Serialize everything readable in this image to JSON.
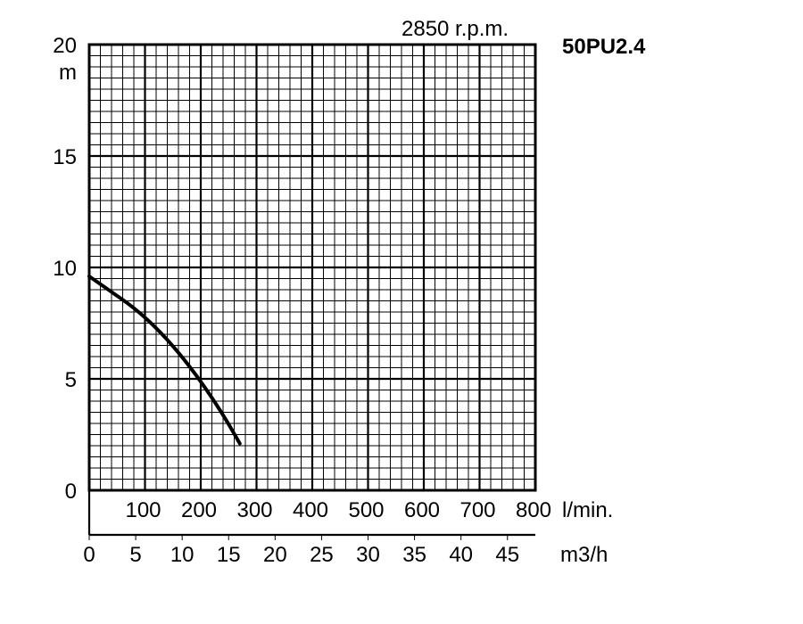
{
  "chart_data": {
    "type": "line",
    "title": "50PU2.4",
    "subtitle": "2850 r.p.m.",
    "ylabel": "m",
    "xlabel_primary": "l/min.",
    "xlabel_secondary": "m3/h",
    "ylim": [
      0,
      20
    ],
    "xlim_lmin": [
      0,
      800
    ],
    "yticks": [
      "0",
      "5",
      "10",
      "15",
      "20"
    ],
    "xticks_lmin": [
      "100",
      "200",
      "300",
      "400",
      "500",
      "600",
      "700",
      "800"
    ],
    "xticks_m3h": [
      "0",
      "5",
      "10",
      "15",
      "20",
      "25",
      "30",
      "35",
      "40",
      "45"
    ],
    "grid": true,
    "series": [
      {
        "x_lmin": [
          0,
          40,
          80,
          120,
          160,
          200,
          240,
          270
        ],
        "y_m": [
          9.6,
          8.9,
          8.2,
          7.3,
          6.2,
          4.9,
          3.4,
          2.1
        ]
      }
    ]
  }
}
